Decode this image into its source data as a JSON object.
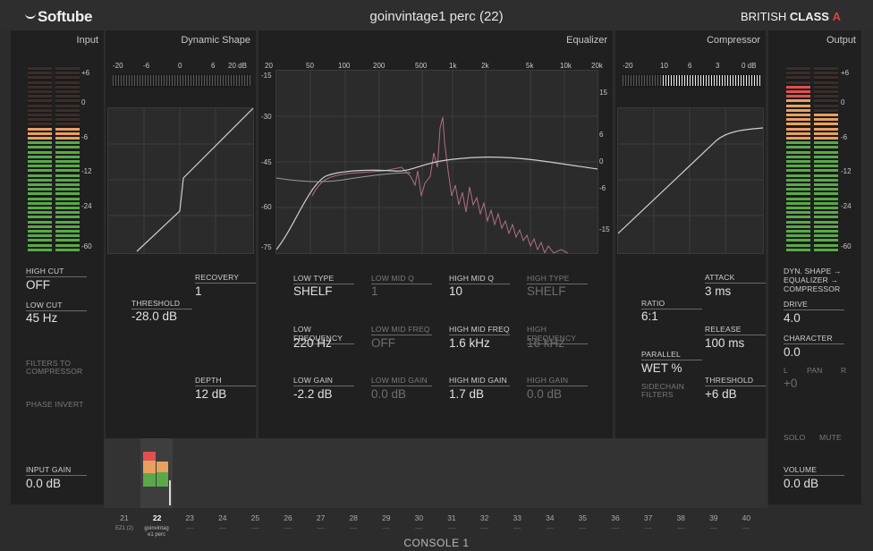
{
  "header": {
    "logo": "Softube",
    "title": "goinvintage1 perc (22)",
    "brand_main": "BRITISH",
    "brand_bold": "CLASS",
    "brand_mark": "A"
  },
  "input": {
    "title": "Input",
    "scale": [
      "+6",
      "0",
      "-6",
      "-12",
      "-24",
      "-60"
    ],
    "high_cut_label": "HIGH CUT",
    "high_cut_value": "OFF",
    "low_cut_label": "LOW CUT",
    "low_cut_value": "45 Hz",
    "filters_to_comp_1": "FILTERS TO",
    "filters_to_comp_2": "COMPRESSOR",
    "phase_invert": "PHASE INVERT",
    "input_gain_label": "INPUT GAIN",
    "input_gain_value": "0.0 dB",
    "meter_levels": [
      0.66,
      0.67
    ]
  },
  "dynamic_shape": {
    "title": "Dynamic Shape",
    "scale": [
      "-20",
      "-6",
      "0",
      "6",
      "20 dB"
    ],
    "recovery_label": "RECOVERY",
    "recovery_value": "1",
    "threshold_label": "THRESHOLD",
    "threshold_value": "-28.0 dB",
    "depth_label": "DEPTH",
    "depth_value": "12 dB"
  },
  "equalizer": {
    "title": "Equalizer",
    "freq_scale": [
      "20",
      "50",
      "100",
      "200",
      "500",
      "1k",
      "2k",
      "5k",
      "10k",
      "20k"
    ],
    "left_scale": [
      "-15",
      "-30",
      "-45",
      "-60",
      "-75"
    ],
    "right_scale": [
      "15",
      "6",
      "0",
      "-6",
      "-15"
    ],
    "low_type_label": "LOW TYPE",
    "low_type_value": "SHELF",
    "low_mid_q_label": "LOW MID Q",
    "low_mid_q_value": "1",
    "high_mid_q_label": "HIGH MID Q",
    "high_mid_q_value": "10",
    "high_type_label": "HIGH TYPE",
    "high_type_value": "SHELF",
    "low_freq_label": "LOW FREQUENCY",
    "low_freq_value": "220 Hz",
    "low_mid_freq_label": "LOW MID FREQ",
    "low_mid_freq_value": "OFF",
    "high_mid_freq_label": "HIGH MID FREQ",
    "high_mid_freq_value": "1.6 kHz",
    "high_freq_label": "HIGH FREQUENCY",
    "high_freq_value": "16 kHz",
    "low_gain_label": "LOW GAIN",
    "low_gain_value": "-2.2 dB",
    "low_mid_gain_label": "LOW MID GAIN",
    "low_mid_gain_value": "0.0 dB",
    "high_mid_gain_label": "HIGH MID GAIN",
    "high_mid_gain_value": "1.7 dB",
    "high_gain_label": "HIGH GAIN",
    "high_gain_value": "0.0 dB"
  },
  "compressor": {
    "title": "Compressor",
    "scale": [
      "-20",
      "10",
      "6",
      "3",
      "0 dB"
    ],
    "ratio_label": "RATIO",
    "ratio_value": "6:1",
    "attack_label": "ATTACK",
    "attack_value": "3 ms",
    "release_label": "RELEASE",
    "release_value": "100 ms",
    "parallel_label": "PARALLEL",
    "parallel_value": "WET %",
    "sidechain_1": "SIDECHAIN",
    "sidechain_2": "FILTERS",
    "threshold_label": "THRESHOLD",
    "threshold_value": "+6 dB"
  },
  "output": {
    "title": "Output",
    "scale": [
      "+6",
      "0",
      "-6",
      "-12",
      "-24",
      "-60"
    ],
    "order_1": "DYN. SHAPE →",
    "order_2": "EQUALIZER →",
    "order_3": "COMPRESSOR",
    "drive_label": "DRIVE",
    "drive_value": "4.0",
    "character_label": "CHARACTER",
    "character_value": "0.0",
    "pan_l": "L",
    "pan_label": "PAN",
    "pan_r": "R",
    "pan_value": "+0",
    "solo": "SOLO",
    "mute": "MUTE",
    "volume_label": "VOLUME",
    "volume_value": "0.0 dB",
    "meter_levels": [
      0.88,
      0.73
    ]
  },
  "channels": {
    "numbers": [
      "21",
      "22",
      "23",
      "24",
      "25",
      "26",
      "27",
      "28",
      "29",
      "30",
      "31",
      "32",
      "33",
      "34",
      "35",
      "36",
      "37",
      "38",
      "39",
      "40"
    ],
    "ch21_name": "EZ1 (2)",
    "ch22_name_1": "goinvintag",
    "ch22_name_2": "e1 perc",
    "dash": "—"
  },
  "footer": {
    "console": "CONSOLE 1"
  },
  "colors": {
    "meter_green": "#5aa84a",
    "meter_orange": "#e8a060",
    "meter_red": "#e05050",
    "accent": "#e04040"
  }
}
